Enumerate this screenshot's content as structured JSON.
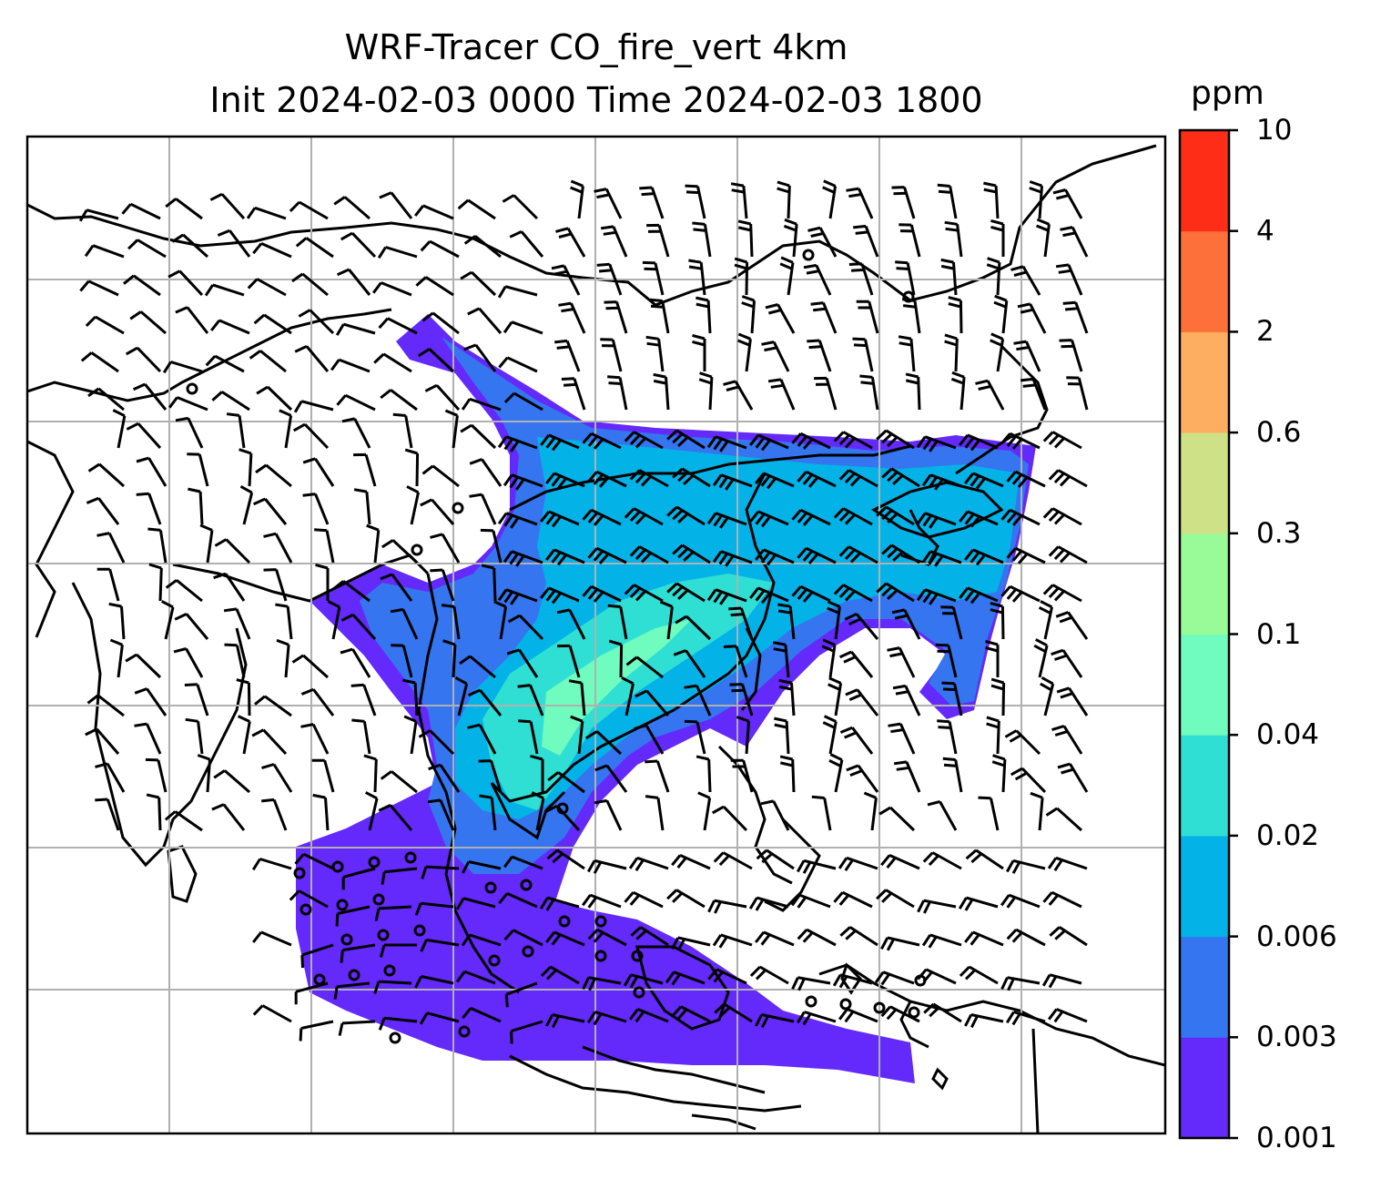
{
  "title_line1": "WRF-Tracer CO_fire_vert 4km",
  "title_line2": "Init 2024-02-03 0000 Time 2024-02-03 1800",
  "colorbar": {
    "unit": "ppm",
    "levels": [
      "0.001",
      "0.003",
      "0.006",
      "0.02",
      "0.04",
      "0.1",
      "0.3",
      "0.6",
      "2",
      "4",
      "10"
    ],
    "colors": [
      "#6429fb",
      "#3575f0",
      "#03b3e8",
      "#2fdfd4",
      "#6ffcbe",
      "#99fb97",
      "#cfe187",
      "#feae60",
      "#fe7039",
      "#fe2d17"
    ]
  },
  "map": {
    "projection": "lat-lon grid with gridlines",
    "gridlines": true,
    "plume_color_low": "#6429fb",
    "plume_color_mid": "#3575f0",
    "plume_color_high": "#03b3e8",
    "wind_barbs": true
  }
}
